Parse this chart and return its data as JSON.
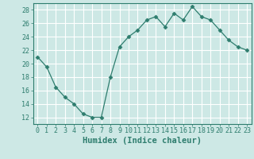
{
  "x": [
    0,
    1,
    2,
    3,
    4,
    5,
    6,
    7,
    8,
    9,
    10,
    11,
    12,
    13,
    14,
    15,
    16,
    17,
    18,
    19,
    20,
    21,
    22,
    23
  ],
  "y": [
    21,
    19.5,
    16.5,
    15,
    14,
    12.5,
    12,
    12,
    18,
    22.5,
    24,
    25,
    26.5,
    27,
    25.5,
    27.5,
    26.5,
    28.5,
    27,
    26.5,
    25,
    23.5,
    22.5,
    22
  ],
  "line_color": "#2e7d6e",
  "marker": "D",
  "marker_size": 2.5,
  "bg_color": "#cde8e5",
  "grid_color": "#ffffff",
  "xlabel": "Humidex (Indice chaleur)",
  "ylim": [
    11,
    29
  ],
  "xlim": [
    -0.5,
    23.5
  ],
  "yticks": [
    12,
    14,
    16,
    18,
    20,
    22,
    24,
    26,
    28
  ],
  "xticks": [
    0,
    1,
    2,
    3,
    4,
    5,
    6,
    7,
    8,
    9,
    10,
    11,
    12,
    13,
    14,
    15,
    16,
    17,
    18,
    19,
    20,
    21,
    22,
    23
  ],
  "axis_color": "#2e7d6e",
  "font_color": "#2e7d6e",
  "tick_fontsize": 6,
  "xlabel_fontsize": 7.5
}
